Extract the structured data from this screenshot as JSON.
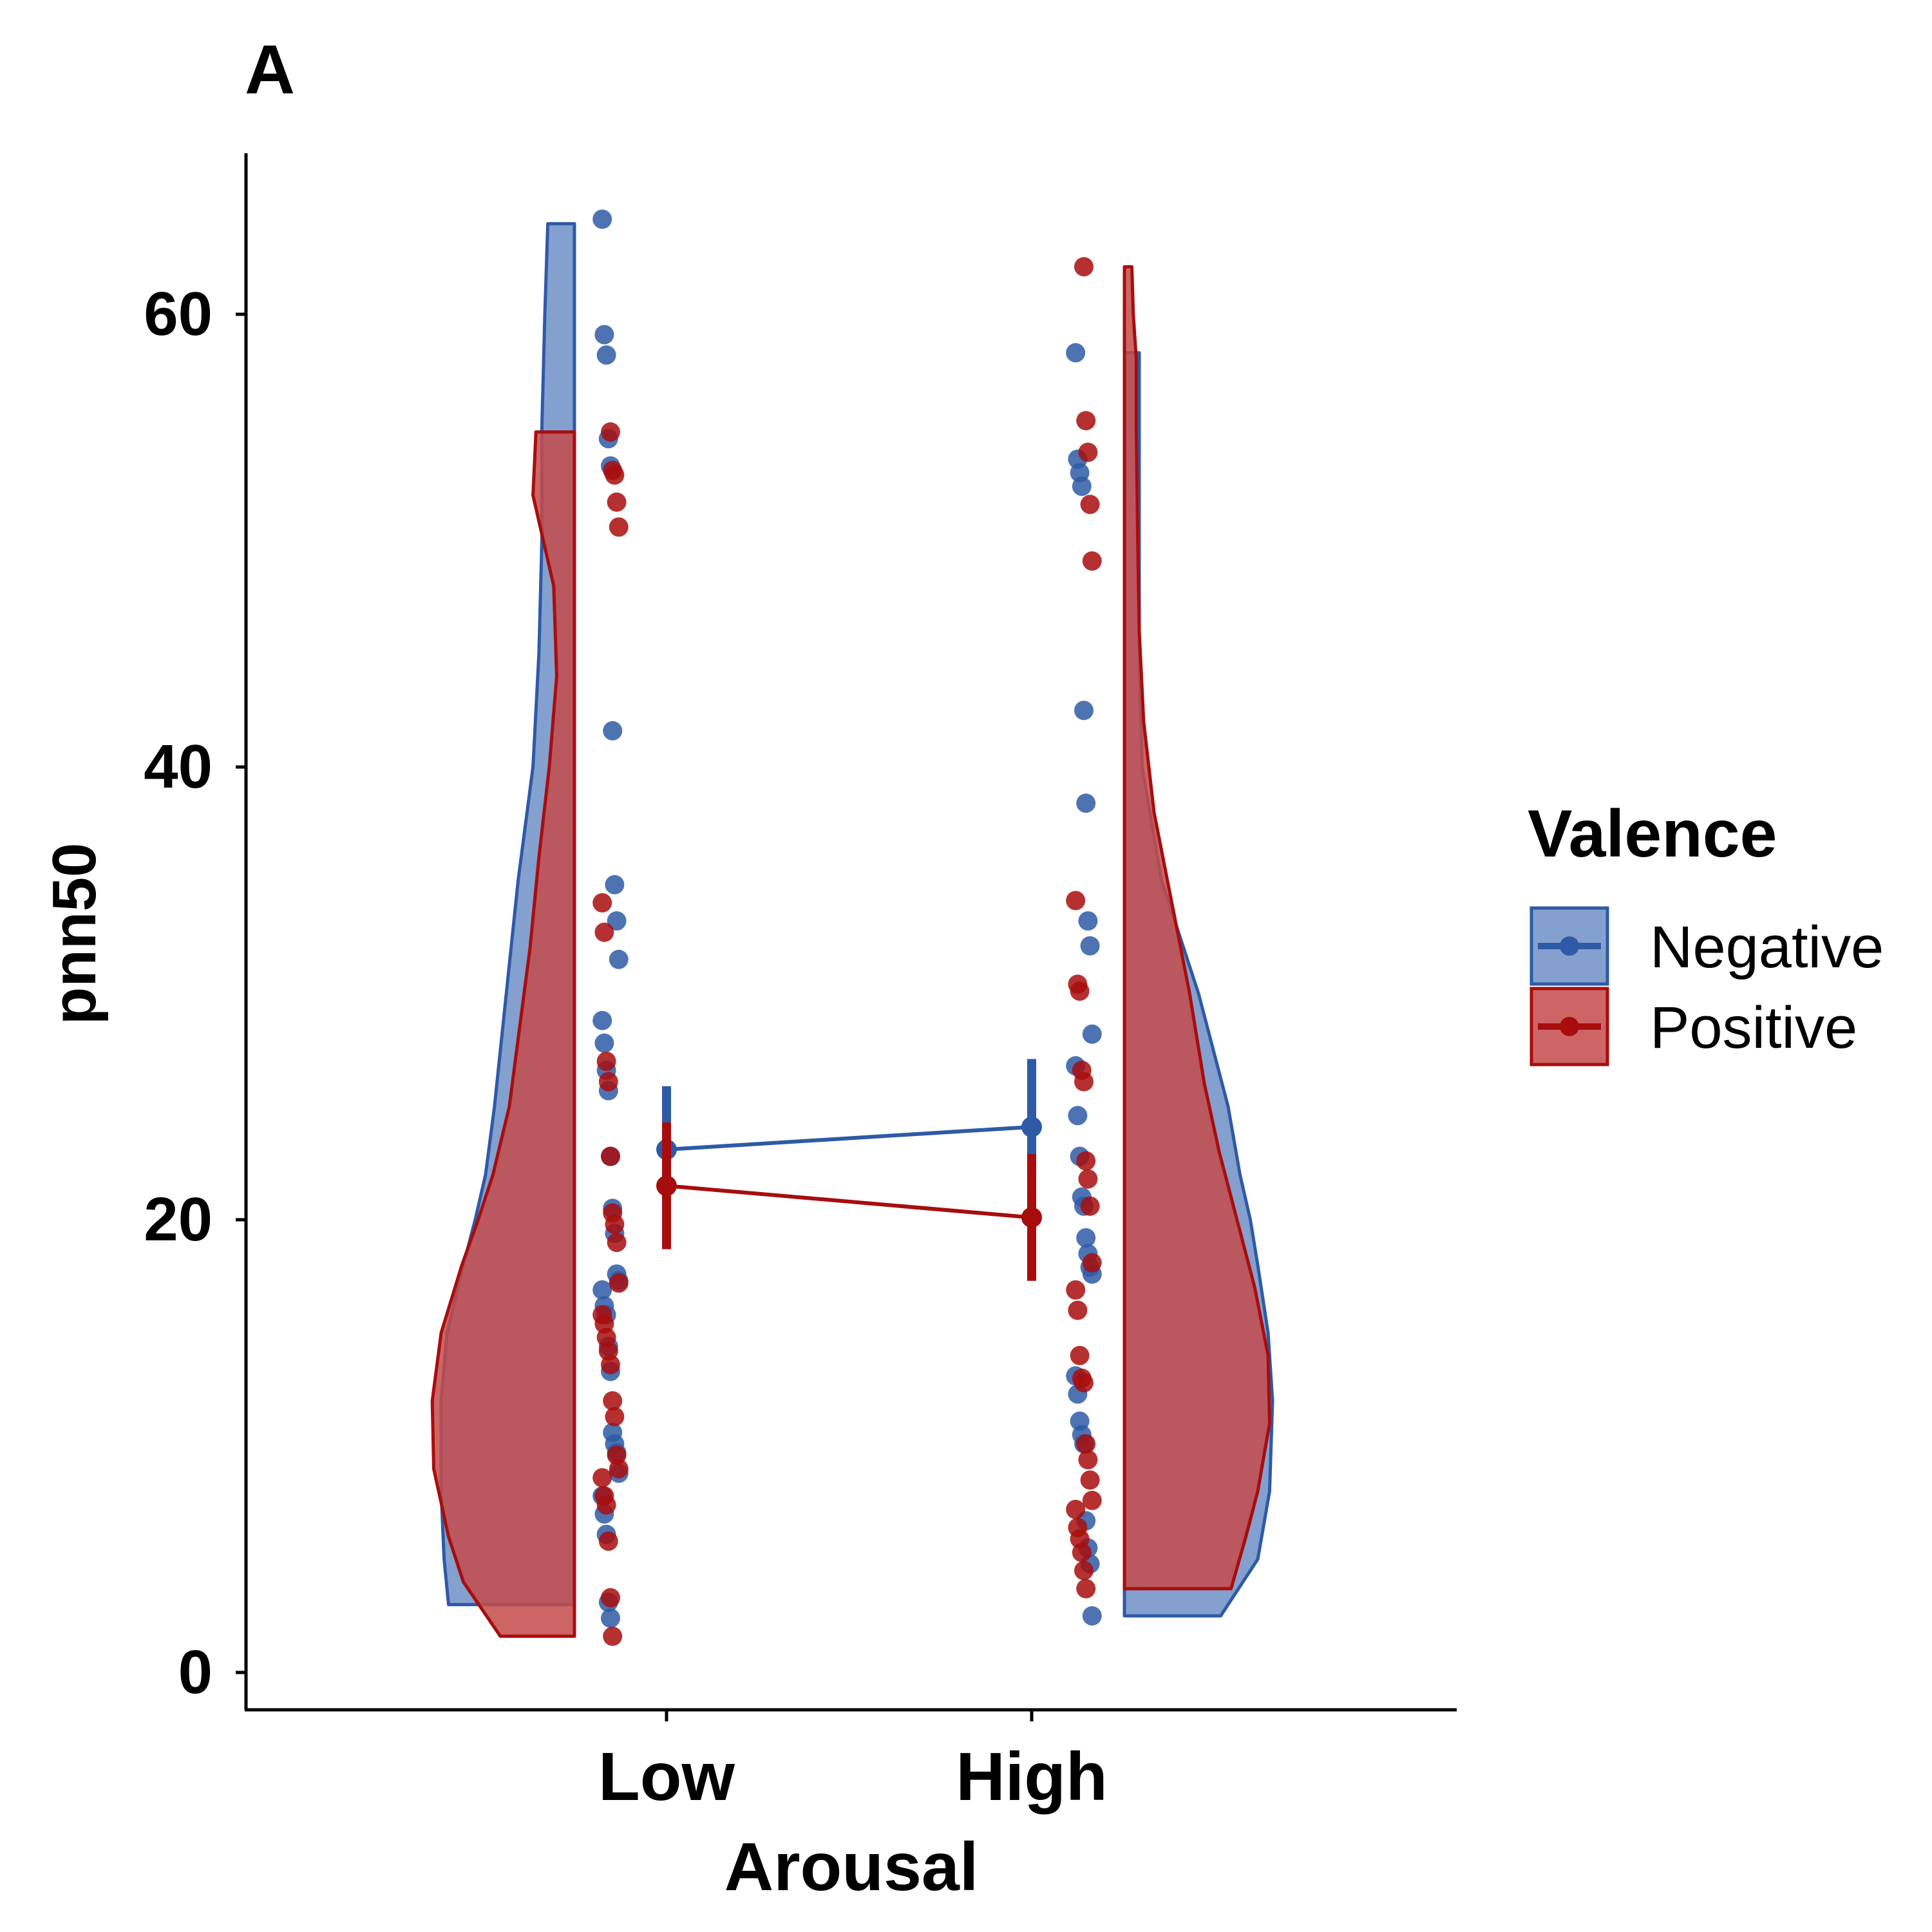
{
  "chart_data": {
    "type": "raincloud",
    "panel_label": "A",
    "xlabel": "Arousal",
    "ylabel": "pnn50",
    "categories": [
      "Low",
      "High"
    ],
    "yticks": [
      0,
      20,
      40,
      60
    ],
    "ylim": [
      -1.5,
      67.5
    ],
    "legend": {
      "title": "Valence",
      "position": "right"
    },
    "grid": false,
    "series": [
      {
        "name": "Negative",
        "color": "#2e5aa6",
        "fill": "#6e8fc6",
        "points": {
          "Low": [
            64.2,
            59.1,
            58.2,
            54.5,
            53.3,
            41.6,
            34.8,
            33.2,
            31.5,
            28.8,
            27.8,
            26.6,
            25.7,
            22.8,
            20.5,
            19.4,
            17.6,
            17.3,
            16.9,
            16.2,
            15.8,
            14.4,
            13.3,
            10.6,
            10.1,
            9.7,
            8.8,
            7.8,
            7.0,
            6.1,
            3.1,
            2.4
          ],
          "High": [
            58.3,
            53.6,
            53.0,
            52.4,
            42.5,
            38.4,
            33.2,
            32.1,
            28.2,
            26.8,
            24.6,
            22.8,
            21.0,
            20.6,
            19.2,
            18.5,
            17.9,
            17.6,
            13.1,
            12.3,
            11.1,
            10.5,
            10.1,
            6.7,
            5.5,
            4.8,
            2.5
          ]
        },
        "means": {
          "Low": 23.1,
          "High": 24.1
        },
        "error": {
          "Low": [
            20.4,
            25.9
          ],
          "High": [
            21.0,
            27.1
          ]
        },
        "violin": {
          "Low": {
            "y": [
              3.0,
              5.0,
              8.0,
              12.0,
              15.0,
              18.0,
              20.0,
              22.0,
              25.0,
              30.0,
              35.0,
              40.0,
              45.0,
              50.0,
              55.0,
              60.0,
              64.0
            ],
            "density": [
              0.85,
              0.88,
              0.9,
              0.9,
              0.86,
              0.75,
              0.67,
              0.6,
              0.54,
              0.46,
              0.38,
              0.28,
              0.24,
              0.22,
              0.22,
              0.2,
              0.18
            ]
          },
          "High": {
            "y": [
              2.5,
              5.0,
              8.0,
              12.0,
              15.0,
              18.0,
              20.0,
              22.0,
              25.0,
              30.0,
              35.0,
              40.0,
              45.0,
              50.0,
              55.0,
              58.3
            ],
            "density": [
              0.65,
              0.9,
              0.98,
              1.0,
              0.97,
              0.9,
              0.85,
              0.78,
              0.7,
              0.5,
              0.25,
              0.12,
              0.1,
              0.1,
              0.1,
              0.1
            ]
          }
        }
      },
      {
        "name": "Positive",
        "color": "#a80d0d",
        "fill": "#c44a4a",
        "points": {
          "Low": [
            54.8,
            53.1,
            52.9,
            51.7,
            50.6,
            34.0,
            32.7,
            27.0,
            26.1,
            22.8,
            20.3,
            19.8,
            19.0,
            17.2,
            15.8,
            15.4,
            14.8,
            14.2,
            13.6,
            12.0,
            11.3,
            9.6,
            9.0,
            8.6,
            7.8,
            7.4,
            5.8,
            3.3,
            1.6
          ],
          "High": [
            62.1,
            55.3,
            53.9,
            51.6,
            49.1,
            34.1,
            30.4,
            30.1,
            26.6,
            26.1,
            22.6,
            21.8,
            20.6,
            18.1,
            16.9,
            16.0,
            14.0,
            13.0,
            12.8,
            10.1,
            9.4,
            8.5,
            7.6,
            7.2,
            6.4,
            5.9,
            5.3,
            4.5,
            3.7
          ]
        },
        "means": {
          "Low": 21.5,
          "High": 20.1
        },
        "error": {
          "Low": [
            18.7,
            24.3
          ],
          "High": [
            17.3,
            22.9
          ]
        },
        "violin": {
          "Low": {
            "y": [
              1.6,
              4.0,
              6.0,
              9.0,
              12.0,
              15.0,
              18.0,
              20.0,
              22.0,
              25.0,
              28.0,
              32.0,
              36.0,
              40.0,
              44.0,
              48.0,
              52.0,
              54.8
            ],
            "density": [
              0.5,
              0.75,
              0.85,
              0.95,
              0.96,
              0.9,
              0.76,
              0.65,
              0.55,
              0.44,
              0.38,
              0.3,
              0.24,
              0.17,
              0.12,
              0.14,
              0.28,
              0.26
            ]
          },
          "High": {
            "y": [
              3.7,
              6.0,
              8.0,
              11.0,
              14.0,
              17.0,
              20.0,
              23.0,
              26.0,
              30.0,
              34.0,
              38.0,
              42.0,
              46.0,
              50.0,
              55.0,
              58.0,
              60.0,
              62.1
            ],
            "density": [
              0.72,
              0.82,
              0.9,
              0.98,
              0.97,
              0.88,
              0.76,
              0.64,
              0.54,
              0.44,
              0.32,
              0.2,
              0.13,
              0.1,
              0.09,
              0.08,
              0.08,
              0.06,
              0.05
            ]
          }
        }
      }
    ]
  }
}
